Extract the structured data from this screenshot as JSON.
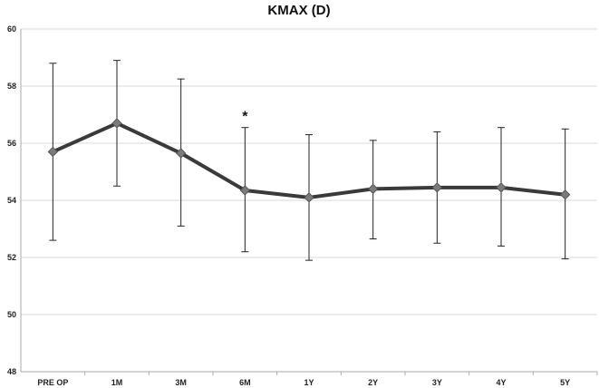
{
  "chart_data": {
    "type": "line",
    "title": "KMAX (D)",
    "xlabel": "",
    "ylabel": "",
    "ylim": [
      48,
      60
    ],
    "yticks": [
      48,
      50,
      52,
      54,
      56,
      58,
      60
    ],
    "grid": "horizontal",
    "legend": "none",
    "categories": [
      "PRE OP",
      "1M",
      "3M",
      "6M",
      "1Y",
      "2Y",
      "3Y",
      "4Y",
      "5Y"
    ],
    "series": [
      {
        "values": [
          55.7,
          56.7,
          55.65,
          54.35,
          54.1,
          54.4,
          54.45,
          54.45,
          54.2
        ],
        "error_upper": [
          58.8,
          58.9,
          58.25,
          56.55,
          56.3,
          56.1,
          56.4,
          56.55,
          56.5
        ],
        "error_lower": [
          52.6,
          54.5,
          53.1,
          52.2,
          51.9,
          52.65,
          52.5,
          52.4,
          51.95
        ]
      }
    ],
    "annotations": [
      {
        "category": "6M",
        "text": "*"
      }
    ],
    "colors": {
      "line": "#3a3a3a",
      "marker": "#7b7b7b",
      "grid": "#d9d9d9",
      "axis": "#aaaaaa",
      "errorbar": "#222222"
    }
  }
}
